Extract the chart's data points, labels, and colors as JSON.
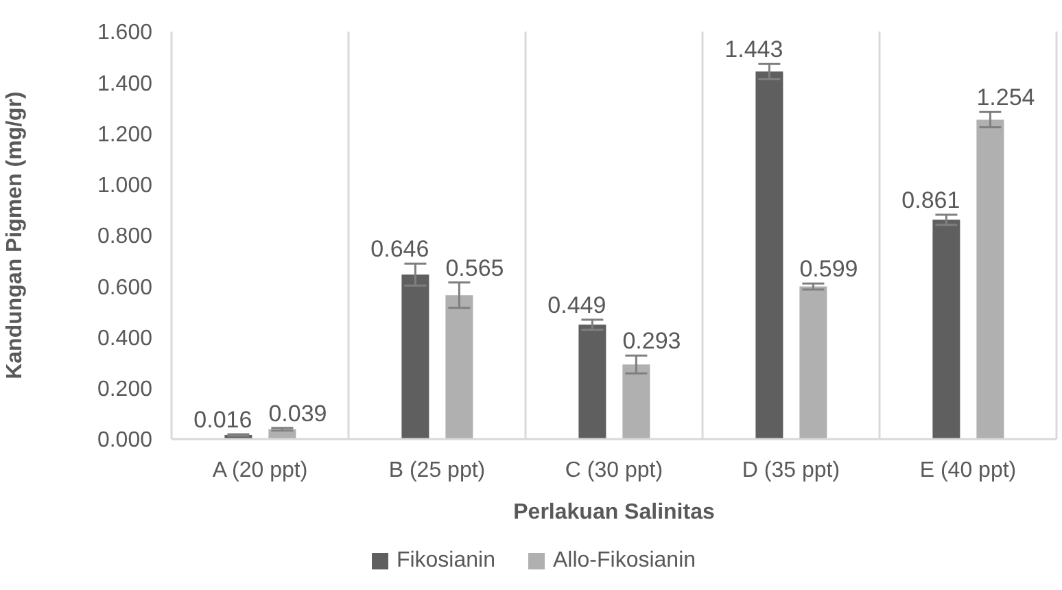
{
  "chart_data": {
    "type": "bar",
    "xlabel": "Perlakuan Salinitas",
    "ylabel": "Kandungan Pigmen (mg/gr)",
    "categories": [
      "A (20 ppt)",
      "B (25 ppt)",
      "C (30 ppt)",
      "D (35 ppt)",
      "E (40 ppt)"
    ],
    "series": [
      {
        "name": "Fikosianin",
        "color": "#5f5f5f",
        "values": [
          0.016,
          0.646,
          0.449,
          1.443,
          0.861
        ],
        "errors": [
          0.003,
          0.043,
          0.02,
          0.03,
          0.02
        ]
      },
      {
        "name": "Allo-Fikosianin",
        "color": "#b0b0b0",
        "values": [
          0.039,
          0.565,
          0.293,
          0.599,
          1.254
        ],
        "errors": [
          0.005,
          0.05,
          0.035,
          0.012,
          0.03
        ]
      }
    ],
    "ylim": [
      0,
      1.6
    ],
    "yticks": [
      {
        "value": 0,
        "label": "0.000"
      },
      {
        "value": 0.2,
        "label": "0.200"
      },
      {
        "value": 0.4,
        "label": "0.400"
      },
      {
        "value": 0.6,
        "label": "0.600"
      },
      {
        "value": 0.8,
        "label": "0.800"
      },
      {
        "value": 1,
        "label": "1.000"
      },
      {
        "value": 1.2,
        "label": "1.200"
      },
      {
        "value": 1.4,
        "label": "1.400"
      },
      {
        "value": 1.6,
        "label": "1.600"
      }
    ],
    "grid": "x",
    "legend": "bottom",
    "data_labels": true
  }
}
